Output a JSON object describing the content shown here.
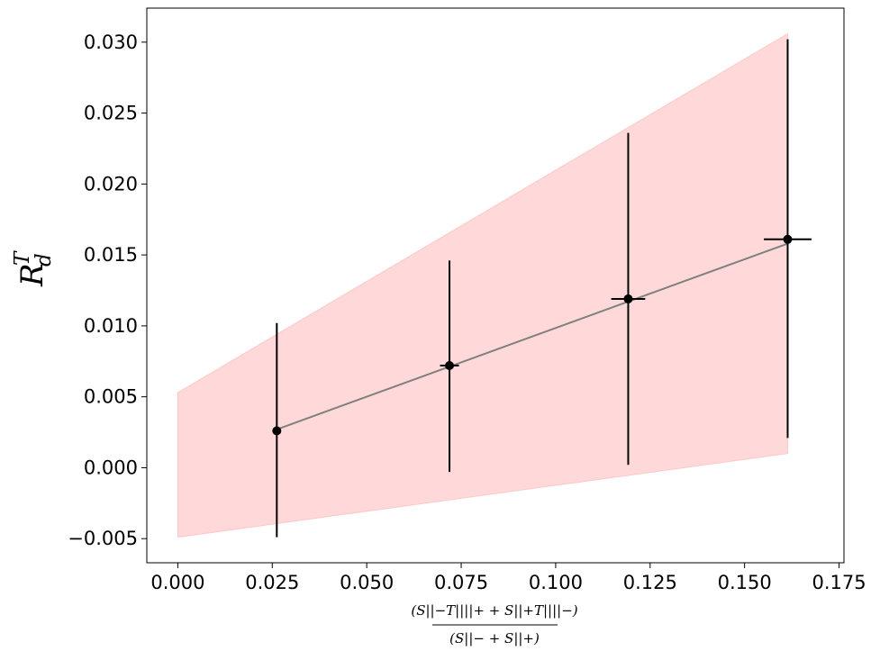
{
  "chart_data": {
    "type": "scatter",
    "title": "",
    "xlabel": {
      "numerator": "(S||−T||||+ + S||+T||||−)",
      "denominator": "(S||− + S||+)"
    },
    "ylabel": {
      "main": "R",
      "sub": "d",
      "sup": "T"
    },
    "xlim": [
      -0.0082,
      0.1763
    ],
    "ylim": [
      -0.0067,
      0.0324
    ],
    "xticks": [
      {
        "value": 0.0,
        "label": "0.000"
      },
      {
        "value": 0.025,
        "label": "0.025"
      },
      {
        "value": 0.05,
        "label": "0.050"
      },
      {
        "value": 0.075,
        "label": "0.075"
      },
      {
        "value": 0.1,
        "label": "0.100"
      },
      {
        "value": 0.125,
        "label": "0.125"
      },
      {
        "value": 0.15,
        "label": "0.150"
      },
      {
        "value": 0.175,
        "label": "0.175"
      }
    ],
    "yticks": [
      {
        "value": -0.005,
        "label": "−0.005"
      },
      {
        "value": 0.0,
        "label": "0.000"
      },
      {
        "value": 0.005,
        "label": "0.005"
      },
      {
        "value": 0.01,
        "label": "0.010"
      },
      {
        "value": 0.015,
        "label": "0.015"
      },
      {
        "value": 0.02,
        "label": "0.020"
      },
      {
        "value": 0.025,
        "label": "0.025"
      },
      {
        "value": 0.03,
        "label": "0.030"
      }
    ],
    "grid": false,
    "band": {
      "color": "#ffb3b3",
      "x": [
        0.0,
        0.1614
      ],
      "upper": [
        0.0053,
        0.0306
      ],
      "lower": [
        -0.0049,
        0.001
      ]
    },
    "fit_line": {
      "color": "#808080",
      "x": [
        0.0262,
        0.1614
      ],
      "y": [
        0.0027,
        0.0158
      ]
    },
    "points": [
      {
        "x": 0.0262,
        "y": 0.0026,
        "xerr": 0.0,
        "ylow": -0.0049,
        "yhigh": 0.0102
      },
      {
        "x": 0.0719,
        "y": 0.0072,
        "xerr": 0.0025,
        "ylow": -0.0003,
        "yhigh": 0.0146
      },
      {
        "x": 0.1192,
        "y": 0.0119,
        "xerr": 0.0045,
        "ylow": 0.0002,
        "yhigh": 0.0236
      },
      {
        "x": 0.1614,
        "y": 0.0161,
        "xerr": 0.0063,
        "ylow": 0.0021,
        "yhigh": 0.0302
      }
    ],
    "point_color": "#000000"
  }
}
